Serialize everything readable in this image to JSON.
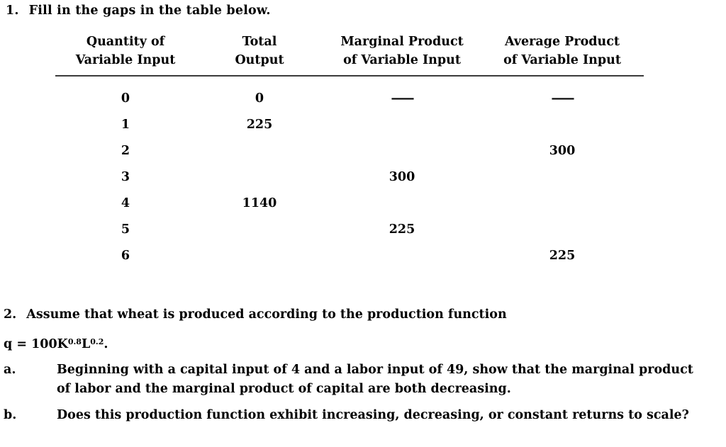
{
  "page": {
    "background": "#ffffff",
    "text_color": "#000000"
  },
  "question1": {
    "number": "1.",
    "text": "Fill in the gaps in the table below."
  },
  "table": {
    "headers": [
      {
        "line1": "Quantity of",
        "line2": "Variable Input"
      },
      {
        "line1": "Total",
        "line2": "Output"
      },
      {
        "line1": "Marginal Product",
        "line2": "of Variable Input"
      },
      {
        "line1": "Average Product",
        "line2": "of Variable Input"
      }
    ],
    "rows": [
      [
        "0",
        "0",
        "——",
        "——"
      ],
      [
        "1",
        "225",
        "",
        ""
      ],
      [
        "2",
        "",
        "",
        "300"
      ],
      [
        "3",
        "",
        "300",
        ""
      ],
      [
        "4",
        "1140",
        "",
        ""
      ],
      [
        "5",
        "",
        "225",
        ""
      ],
      [
        "6",
        "",
        "",
        "225"
      ]
    ]
  },
  "question2": {
    "number": "2.",
    "text": "Assume that wheat is produced according to the production function",
    "formula": {
      "lead": "q = 100K",
      "exp1": "0.8",
      "base2": "L",
      "exp2": "0.2",
      "period": "."
    },
    "parts": [
      {
        "label": "a.",
        "text": "Beginning with a capital input of 4 and a labor input of 49, show that the marginal product of labor and the marginal product of capital are both decreasing."
      },
      {
        "label": "b.",
        "text": "Does this production function exhibit increasing, decreasing, or constant returns to scale?"
      }
    ]
  }
}
